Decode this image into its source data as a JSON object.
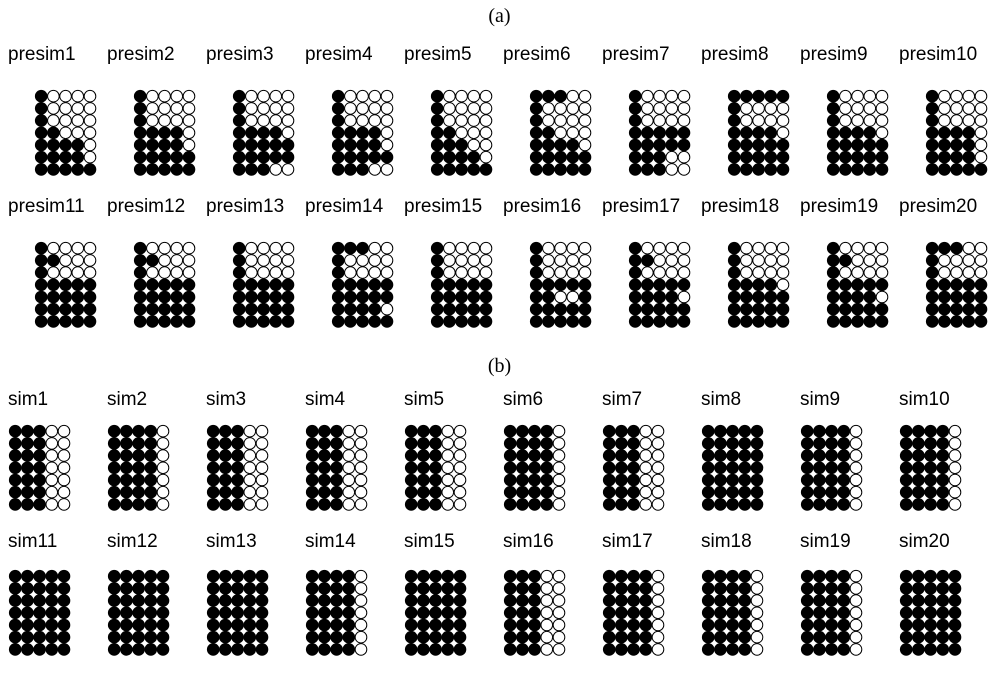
{
  "colors": {
    "filled": "#000000",
    "empty": "#ffffff",
    "outline": "#000000"
  },
  "panels": [
    {
      "label": "(a)",
      "rows": [
        {
          "items": [
            {
              "name": "presim1",
              "pattern": [
                "10000",
                "10000",
                "10000",
                "11000",
                "11110",
                "11110",
                "11111"
              ]
            },
            {
              "name": "presim2",
              "pattern": [
                "10000",
                "10000",
                "10000",
                "11110",
                "11110",
                "11111",
                "11111"
              ]
            },
            {
              "name": "presim3",
              "pattern": [
                "10000",
                "10000",
                "10000",
                "11110",
                "11111",
                "11111",
                "11100"
              ]
            },
            {
              "name": "presim4",
              "pattern": [
                "10000",
                "10000",
                "10000",
                "11110",
                "11110",
                "11111",
                "11100"
              ]
            },
            {
              "name": "presim5",
              "pattern": [
                "10000",
                "10000",
                "10000",
                "11000",
                "11100",
                "11110",
                "11111"
              ]
            },
            {
              "name": "presim6",
              "pattern": [
                "11100",
                "10000",
                "10000",
                "11000",
                "11110",
                "11111",
                "11111"
              ]
            },
            {
              "name": "presim7",
              "pattern": [
                "10000",
                "10000",
                "10000",
                "11111",
                "11111",
                "11100",
                "11100"
              ]
            },
            {
              "name": "presim8",
              "pattern": [
                "11111",
                "10000",
                "10000",
                "11110",
                "11111",
                "11111",
                "11111"
              ]
            },
            {
              "name": "presim9",
              "pattern": [
                "10000",
                "10000",
                "10000",
                "11110",
                "11111",
                "11111",
                "11111"
              ]
            },
            {
              "name": "presim10",
              "pattern": [
                "10000",
                "10000",
                "10000",
                "11110",
                "11110",
                "11110",
                "11111"
              ]
            }
          ]
        },
        {
          "items": [
            {
              "name": "presim11",
              "pattern": [
                "10000",
                "11000",
                "10000",
                "11111",
                "11111",
                "11111",
                "11111"
              ]
            },
            {
              "name": "presim12",
              "pattern": [
                "10000",
                "11000",
                "10000",
                "11111",
                "11111",
                "11111",
                "11111"
              ]
            },
            {
              "name": "presim13",
              "pattern": [
                "10000",
                "10000",
                "10000",
                "11111",
                "11111",
                "11111",
                "11111"
              ]
            },
            {
              "name": "presim14",
              "pattern": [
                "11100",
                "10000",
                "10000",
                "11111",
                "11111",
                "11110",
                "11111"
              ]
            },
            {
              "name": "presim15",
              "pattern": [
                "10000",
                "10000",
                "10000",
                "11111",
                "11111",
                "11111",
                "11111"
              ]
            },
            {
              "name": "presim16",
              "pattern": [
                "10000",
                "10000",
                "10000",
                "11111",
                "11001",
                "11111",
                "11111"
              ]
            },
            {
              "name": "presim17",
              "pattern": [
                "10000",
                "11000",
                "10000",
                "11111",
                "11110",
                "11111",
                "11111"
              ]
            },
            {
              "name": "presim18",
              "pattern": [
                "10000",
                "10000",
                "10000",
                "11110",
                "11111",
                "11111",
                "11111"
              ]
            },
            {
              "name": "presim19",
              "pattern": [
                "10000",
                "11000",
                "10000",
                "11111",
                "11110",
                "11111",
                "11111"
              ]
            },
            {
              "name": "presim20",
              "pattern": [
                "11100",
                "10000",
                "10000",
                "11111",
                "11111",
                "11111",
                "11111"
              ]
            }
          ]
        }
      ]
    },
    {
      "label": "(b)",
      "rows": [
        {
          "items": [
            {
              "name": "sim1",
              "pattern": [
                "11100",
                "11100",
                "11100",
                "11100",
                "11100",
                "11100",
                "11100"
              ]
            },
            {
              "name": "sim2",
              "pattern": [
                "11110",
                "11110",
                "11110",
                "11110",
                "11110",
                "11110",
                "11110"
              ]
            },
            {
              "name": "sim3",
              "pattern": [
                "11100",
                "11100",
                "11100",
                "11100",
                "11100",
                "11100",
                "11100"
              ]
            },
            {
              "name": "sim4",
              "pattern": [
                "11100",
                "11100",
                "11100",
                "11100",
                "11100",
                "11100",
                "11100"
              ]
            },
            {
              "name": "sim5",
              "pattern": [
                "11100",
                "11100",
                "11100",
                "11100",
                "11100",
                "11100",
                "11100"
              ]
            },
            {
              "name": "sim6",
              "pattern": [
                "11110",
                "11110",
                "11110",
                "11110",
                "11110",
                "11110",
                "11110"
              ]
            },
            {
              "name": "sim7",
              "pattern": [
                "11100",
                "11100",
                "11100",
                "11100",
                "11100",
                "11100",
                "11100"
              ]
            },
            {
              "name": "sim8",
              "pattern": [
                "11111",
                "11111",
                "11111",
                "11111",
                "11111",
                "11111",
                "11111"
              ]
            },
            {
              "name": "sim9",
              "pattern": [
                "11110",
                "11110",
                "11110",
                "11110",
                "11110",
                "11110",
                "11110"
              ]
            },
            {
              "name": "sim10",
              "pattern": [
                "11110",
                "11110",
                "11110",
                "11110",
                "11110",
                "11110",
                "11110"
              ]
            }
          ]
        },
        {
          "items": [
            {
              "name": "sim11",
              "pattern": [
                "11111",
                "11111",
                "11111",
                "11111",
                "11111",
                "11111",
                "11111"
              ]
            },
            {
              "name": "sim12",
              "pattern": [
                "11111",
                "11111",
                "11111",
                "11111",
                "11111",
                "11111",
                "11111"
              ]
            },
            {
              "name": "sim13",
              "pattern": [
                "11111",
                "11111",
                "11111",
                "11111",
                "11111",
                "11111",
                "11111"
              ]
            },
            {
              "name": "sim14",
              "pattern": [
                "11110",
                "11110",
                "11110",
                "11110",
                "11110",
                "11110",
                "11110"
              ]
            },
            {
              "name": "sim15",
              "pattern": [
                "11111",
                "11111",
                "11111",
                "11111",
                "11111",
                "11111",
                "11111"
              ]
            },
            {
              "name": "sim16",
              "pattern": [
                "11100",
                "11100",
                "11100",
                "11100",
                "11100",
                "11100",
                "11100"
              ]
            },
            {
              "name": "sim17",
              "pattern": [
                "11110",
                "11110",
                "11110",
                "11110",
                "11110",
                "11110",
                "11110"
              ]
            },
            {
              "name": "sim18",
              "pattern": [
                "11110",
                "11110",
                "11110",
                "11110",
                "11110",
                "11110",
                "11110"
              ]
            },
            {
              "name": "sim19",
              "pattern": [
                "11110",
                "11110",
                "11110",
                "11110",
                "11110",
                "11110",
                "11110"
              ]
            },
            {
              "name": "sim20",
              "pattern": [
                "11111",
                "11111",
                "11111",
                "11111",
                "11111",
                "11111",
                "11111"
              ]
            }
          ]
        }
      ]
    }
  ]
}
